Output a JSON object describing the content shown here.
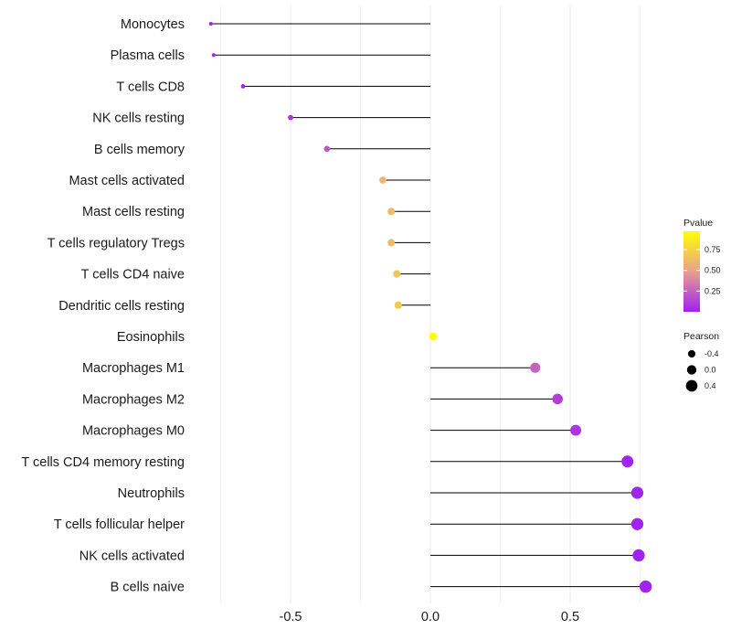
{
  "chart_data": {
    "type": "lollipop",
    "title": "",
    "xlabel": "",
    "ylabel": "",
    "xlim": [
      -0.8,
      0.82
    ],
    "x_ticks": [
      -0.5,
      0.0,
      0.5
    ],
    "x_tick_labels": [
      "-0.5",
      "0.0",
      "0.5"
    ],
    "baseline": 0,
    "grid": true,
    "categories": [
      "Monocytes",
      "Plasma cells",
      "T cells CD8",
      "NK cells resting",
      "B cells memory",
      "Mast cells activated",
      "Mast cells resting",
      "T cells regulatory  Tregs ",
      "T cells CD4 naive",
      "Dendritic cells resting",
      "Eosinophils",
      "Macrophages M1",
      "Macrophages M2",
      "Macrophages M0",
      "T cells CD4 memory resting",
      "Neutrophils",
      "T cells follicular helper",
      "NK cells activated",
      "B cells naive"
    ],
    "pearson": [
      -0.785,
      -0.775,
      -0.67,
      -0.5,
      -0.37,
      -0.17,
      -0.14,
      -0.14,
      -0.12,
      -0.115,
      0.01,
      0.375,
      0.455,
      0.52,
      0.705,
      0.74,
      0.74,
      0.745,
      0.77
    ],
    "pvalue": [
      0.01,
      0.01,
      0.02,
      0.08,
      0.2,
      0.6,
      0.62,
      0.63,
      0.68,
      0.7,
      0.97,
      0.25,
      0.12,
      0.08,
      0.02,
      0.01,
      0.01,
      0.01,
      0.01
    ],
    "legend": {
      "position": "right",
      "color_title": "Pvalue",
      "color_ticks": [
        0.25,
        0.5,
        0.75
      ],
      "color_tick_labels": [
        "0.25",
        "0.50",
        "0.75"
      ],
      "color_range": [
        0.0,
        0.97
      ],
      "size_title": "Pearson",
      "size_ticks": [
        -0.4,
        0.0,
        0.4
      ],
      "size_tick_labels": [
        "-0.4",
        "0.0",
        "0.4"
      ]
    },
    "colors": {
      "low": "#a020f0",
      "mid": "#e8a090",
      "high": "#ffff00",
      "stem": "#000000",
      "grid": "#ebebeb"
    }
  }
}
